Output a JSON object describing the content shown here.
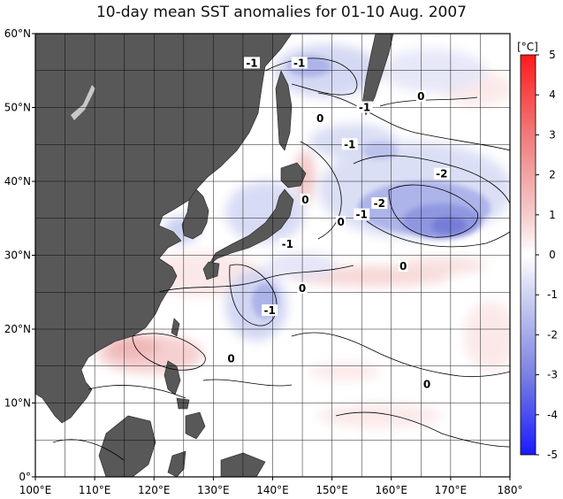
{
  "title": "10-day mean SST anomalies for 01-10 Aug. 2007",
  "map": {
    "lon_ticks": [
      "100°E",
      "110°E",
      "120°E",
      "130°E",
      "140°E",
      "150°E",
      "160°E",
      "170°E",
      "180°"
    ],
    "lat_ticks": [
      "0°",
      "10°N",
      "20°N",
      "30°N",
      "40°N",
      "50°N",
      "60°N"
    ],
    "lon_range": [
      100,
      180
    ],
    "lat_range": [
      0,
      60
    ],
    "land_color": "#585858",
    "grid": true
  },
  "colorbar": {
    "unit": "[°C]",
    "labels": [
      "5",
      "4",
      "3",
      "2",
      "1",
      "0",
      "-1",
      "-2",
      "-3",
      "-4",
      "-5"
    ],
    "max_color": "#ff1a1a",
    "min_color": "#1a1aff"
  },
  "contour_labels": [
    {
      "text": "-1",
      "lon": 136.5,
      "lat": 56.0
    },
    {
      "text": "-1",
      "lon": 144.5,
      "lat": 56.0
    },
    {
      "text": "0",
      "lon": 165.0,
      "lat": 51.5
    },
    {
      "text": "-1",
      "lon": 155.5,
      "lat": 50.0
    },
    {
      "text": "0",
      "lon": 148.0,
      "lat": 48.5
    },
    {
      "text": "-1",
      "lon": 153.0,
      "lat": 45.0
    },
    {
      "text": "-2",
      "lon": 168.5,
      "lat": 41.0
    },
    {
      "text": "0",
      "lon": 145.5,
      "lat": 37.5
    },
    {
      "text": "-2",
      "lon": 158.0,
      "lat": 37.0
    },
    {
      "text": "-1",
      "lon": 155.0,
      "lat": 35.5
    },
    {
      "text": "0",
      "lon": 151.5,
      "lat": 34.5
    },
    {
      "text": "-1",
      "lon": 142.5,
      "lat": 31.5
    },
    {
      "text": "0",
      "lon": 162.0,
      "lat": 28.5
    },
    {
      "text": "0",
      "lon": 145.0,
      "lat": 25.5
    },
    {
      "text": "-1",
      "lon": 139.5,
      "lat": 22.5
    },
    {
      "text": "0",
      "lon": 133.0,
      "lat": 16.0
    },
    {
      "text": "0",
      "lon": 166.0,
      "lat": 12.5
    }
  ]
}
